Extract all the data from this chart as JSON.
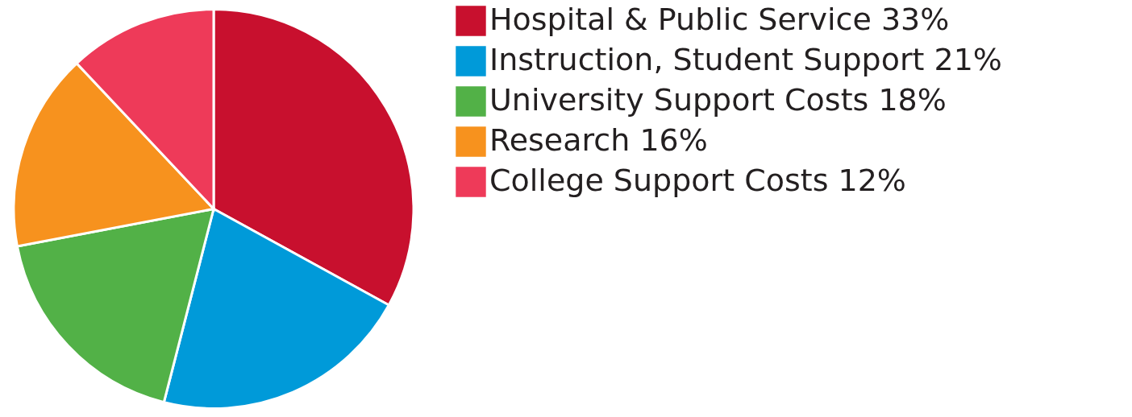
{
  "chart_data": {
    "type": "pie",
    "categories": [
      "Hospital & Public Service",
      "Instruction, Student Support",
      "University Support Costs",
      "Research",
      "College Support Costs"
    ],
    "values": [
      33,
      21,
      18,
      16,
      12
    ],
    "value_labels": [
      "33%",
      "21%",
      "18%",
      "16%",
      "12%"
    ],
    "colors": [
      "#c8102e",
      "#009ad9",
      "#52b147",
      "#f7921e",
      "#ee3a59"
    ],
    "legend": "right"
  }
}
